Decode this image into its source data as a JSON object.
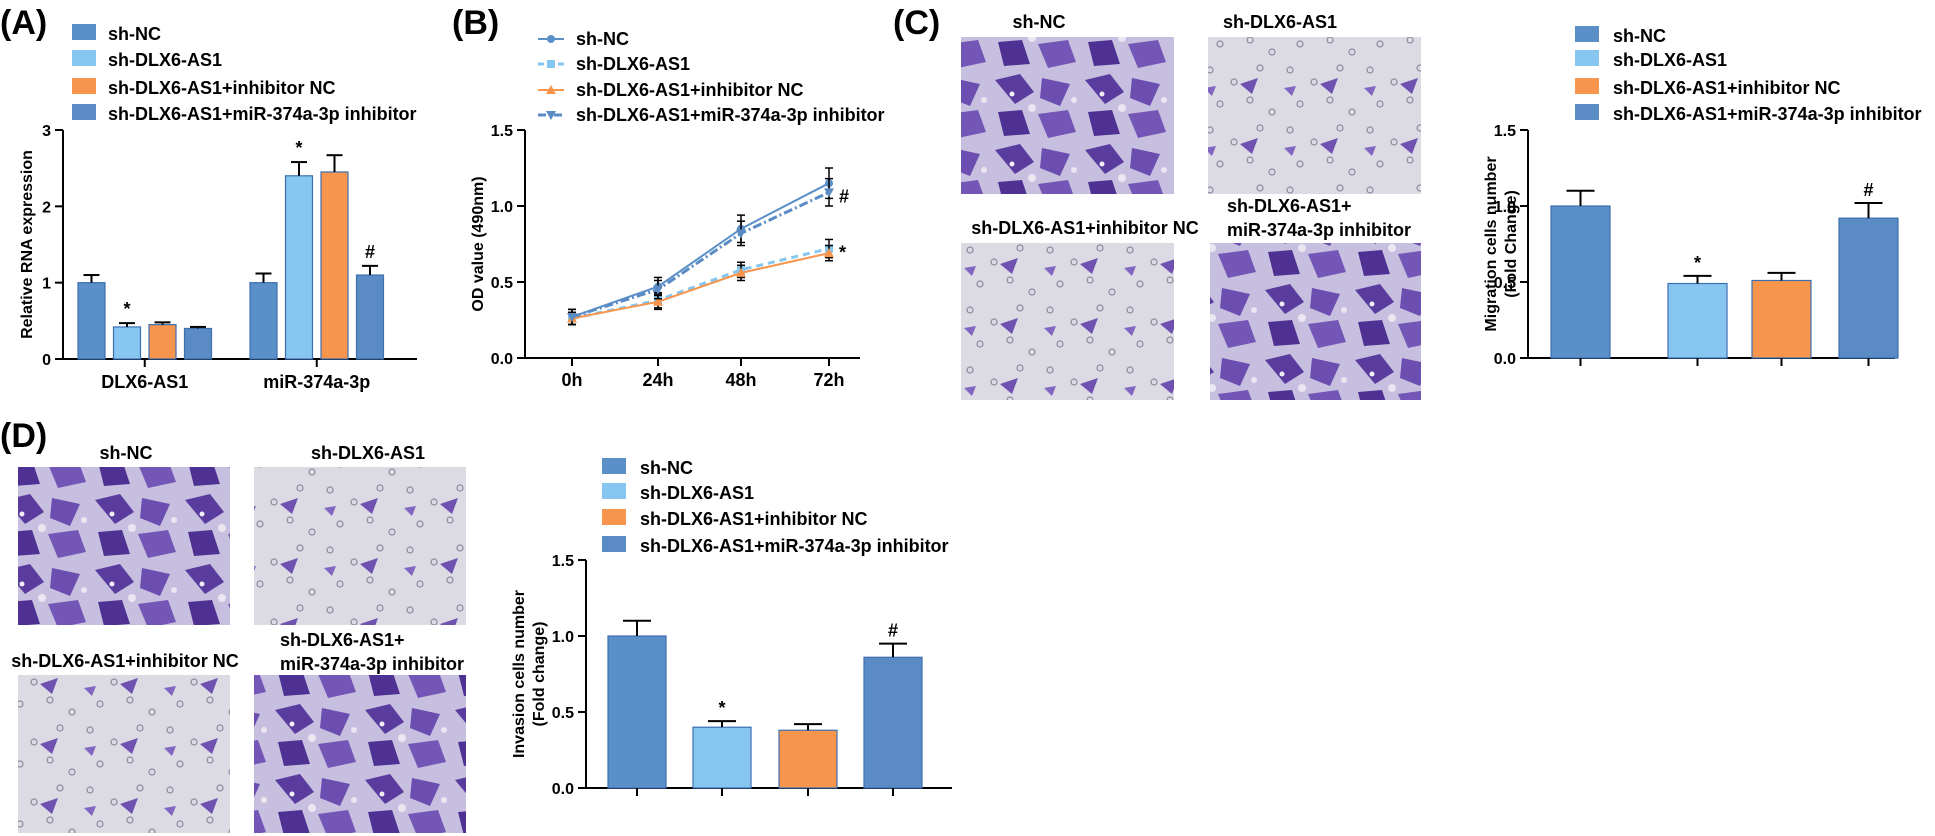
{
  "colors": {
    "sh_nc": "#5b8fc7",
    "sh_dlx6": "#86c6f0",
    "sh_dlx6_inh_nc": "#f6954b",
    "sh_dlx6_mir_inh": "#5a8bc4",
    "axis": "#000000",
    "stain": "#6a4aa8",
    "bg_light": "#d9d6e2"
  },
  "panel_labels": {
    "a": "(A)",
    "b": "(B)",
    "c": "(C)",
    "d": "(D)"
  },
  "legend": {
    "sh_nc": "sh-NC",
    "sh_dlx6": "sh-DLX6-AS1",
    "sh_dlx6_inh_nc": "sh-DLX6-AS1+inhibitor NC",
    "sh_dlx6_mir_inh": "sh-DLX6-AS1+miR-374a-3p inhibitor"
  },
  "image_captions": {
    "sh_nc": "sh-NC",
    "sh_dlx6": "sh-DLX6-AS1",
    "sh_dlx6_inh_nc": "sh-DLX6-AS1+inhibitor NC",
    "sh_dlx6_mir_inh_line1": "sh-DLX6-AS1+",
    "sh_dlx6_mir_inh_line2": "miR-374a-3p inhibitor"
  },
  "chart_data": [
    {
      "id": "A",
      "type": "bar",
      "ylabel": "Relative RNA expression",
      "ylim": [
        0,
        3
      ],
      "yticks": [
        "0",
        "1",
        "2",
        "3"
      ],
      "categories": [
        "DLX6-AS1",
        "miR-374a-3p"
      ],
      "series": [
        {
          "name": "sh-NC",
          "values": [
            1.0,
            1.0
          ],
          "errors": [
            0.1,
            0.12
          ]
        },
        {
          "name": "sh-DLX6-AS1",
          "values": [
            0.42,
            2.4
          ],
          "errors": [
            0.05,
            0.18
          ]
        },
        {
          "name": "sh-DLX6-AS1+inhibitor NC",
          "values": [
            0.45,
            2.45
          ],
          "errors": [
            0.03,
            0.22
          ]
        },
        {
          "name": "sh-DLX6-AS1+miR-374a-3p inhibitor",
          "values": [
            0.4,
            1.1
          ],
          "errors": [
            0.02,
            0.12
          ]
        }
      ],
      "annotations": [
        {
          "category": "DLX6-AS1",
          "series": "sh-DLX6-AS1",
          "text": "*"
        },
        {
          "category": "miR-374a-3p",
          "series": "sh-DLX6-AS1",
          "text": "*"
        },
        {
          "category": "miR-374a-3p",
          "series": "sh-DLX6-AS1+miR-374a-3p inhibitor",
          "text": "#"
        }
      ]
    },
    {
      "id": "B",
      "type": "line",
      "ylabel": "OD value (490nm)",
      "ylim": [
        0,
        1.5
      ],
      "yticks": [
        "0.0",
        "0.5",
        "1.0",
        "1.5"
      ],
      "x": [
        "0h",
        "24h",
        "48h",
        "72h"
      ],
      "series": [
        {
          "name": "sh-NC",
          "marker": "circle",
          "dash": "solid",
          "values": [
            0.27,
            0.47,
            0.85,
            1.15
          ],
          "errors": [
            0.05,
            0.06,
            0.09,
            0.1
          ]
        },
        {
          "name": "sh-DLX6-AS1",
          "marker": "square",
          "dash": "dashed",
          "values": [
            0.26,
            0.38,
            0.58,
            0.72
          ],
          "errors": [
            0.04,
            0.05,
            0.05,
            0.06
          ]
        },
        {
          "name": "sh-DLX6-AS1+inhibitor NC",
          "marker": "triangle-up",
          "dash": "solid",
          "values": [
            0.26,
            0.37,
            0.56,
            0.69
          ],
          "errors": [
            0.04,
            0.05,
            0.05,
            0.05
          ]
        },
        {
          "name": "sh-DLX6-AS1+miR-374a-3p inhibitor",
          "marker": "triangle-down",
          "dash": "dashdot",
          "values": [
            0.27,
            0.45,
            0.82,
            1.09
          ],
          "errors": [
            0.05,
            0.06,
            0.08,
            0.09
          ]
        }
      ],
      "annotations": [
        {
          "x": "72h",
          "series": "sh-DLX6-AS1+miR-374a-3p inhibitor",
          "text": "#"
        },
        {
          "x": "72h",
          "series": "sh-DLX6-AS1",
          "text": "*"
        }
      ]
    },
    {
      "id": "C",
      "type": "bar",
      "ylabel_line1": "Migration cells number",
      "ylabel_line2": "(Fold Change)",
      "ylim": [
        0,
        1.5
      ],
      "yticks": [
        "0.0",
        "0.5",
        "1.0",
        "1.5"
      ],
      "categories": [
        "sh-NC",
        "sh-DLX6-AS1",
        "sh-DLX6-AS1+inhibitor NC",
        "sh-DLX6-AS1+miR-374a-3p inhibitor"
      ],
      "values": [
        1.0,
        0.49,
        0.51,
        0.92
      ],
      "errors": [
        0.1,
        0.05,
        0.05,
        0.1
      ],
      "annotations": [
        {
          "index": 1,
          "text": "*"
        },
        {
          "index": 3,
          "text": "#"
        }
      ]
    },
    {
      "id": "D",
      "type": "bar",
      "ylabel_line1": "Invasion cells number",
      "ylabel_line2": "(Fold change)",
      "ylim": [
        0,
        1.5
      ],
      "yticks": [
        "0.0",
        "0.5",
        "1.0",
        "1.5"
      ],
      "categories": [
        "sh-NC",
        "sh-DLX6-AS1",
        "sh-DLX6-AS1+inhibitor NC",
        "sh-DLX6-AS1+miR-374a-3p inhibitor"
      ],
      "values": [
        1.0,
        0.4,
        0.38,
        0.86
      ],
      "errors": [
        0.1,
        0.04,
        0.04,
        0.09
      ],
      "annotations": [
        {
          "index": 1,
          "text": "*"
        },
        {
          "index": 3,
          "text": "#"
        }
      ]
    }
  ]
}
